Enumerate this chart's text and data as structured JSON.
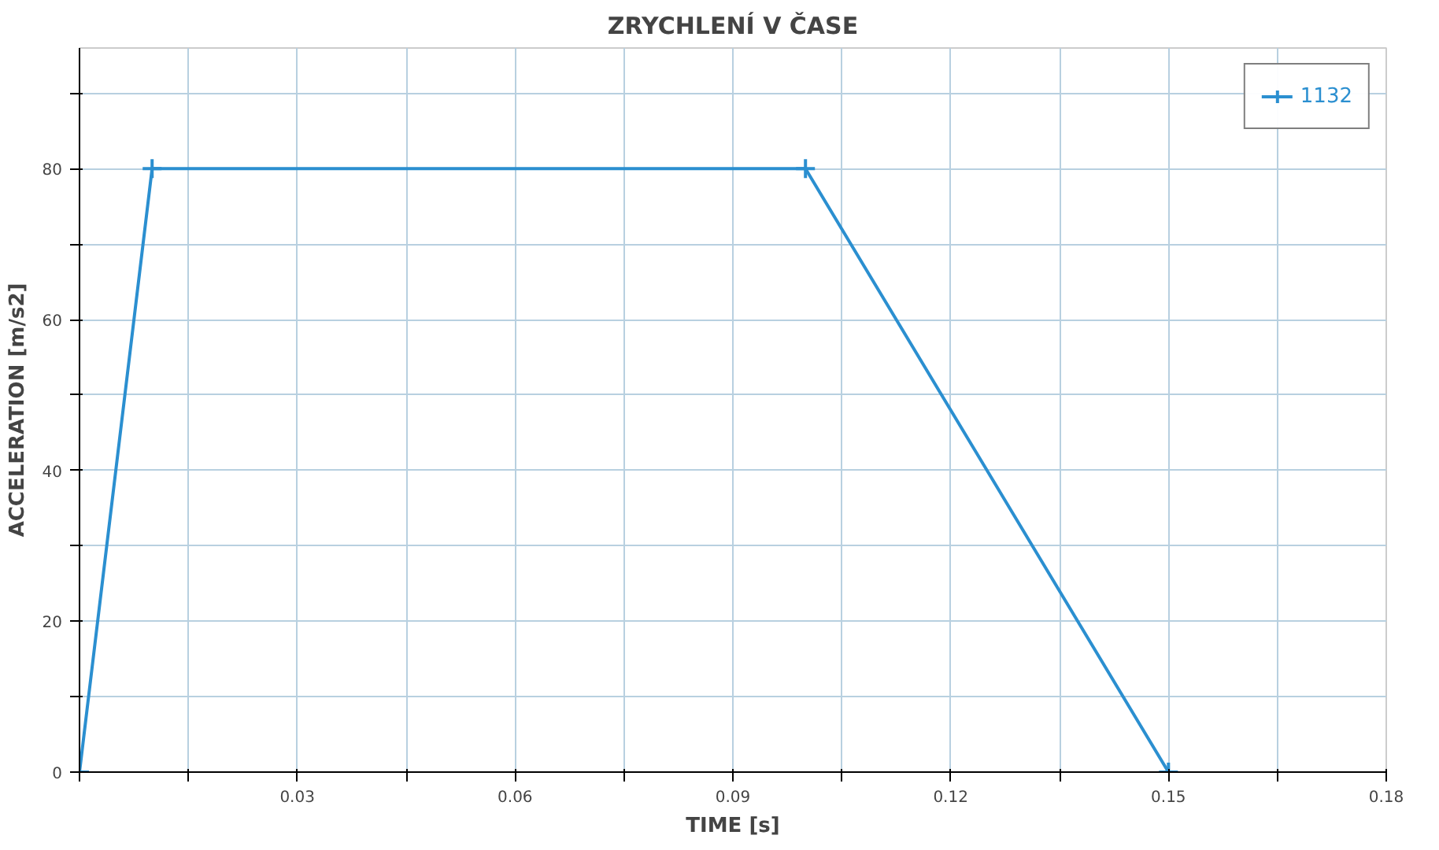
{
  "chart_data": {
    "type": "line",
    "title": "ZRYCHLENÍ V ČASE",
    "xlabel": "TIME [s]",
    "ylabel": "ACCELERATION [m/s2]",
    "x": [
      0,
      0.01,
      0.1,
      0.15
    ],
    "series": [
      {
        "name": "1132",
        "color": "#2b8fd0",
        "values": [
          0,
          80,
          80,
          0
        ]
      }
    ],
    "xlim": [
      0,
      0.18
    ],
    "ylim": [
      0,
      96
    ],
    "xticks": [
      {
        "value": 0,
        "label": null
      },
      {
        "value": 0.015,
        "label": null
      },
      0.03,
      {
        "value": 0.045,
        "label": null
      },
      0.06,
      {
        "value": 0.075,
        "label": null
      },
      0.09,
      {
        "value": 0.105,
        "label": null
      },
      0.12,
      {
        "value": 0.135,
        "label": null
      },
      0.15,
      {
        "value": 0.165,
        "label": null
      },
      0.18
    ],
    "yticks": [
      0,
      {
        "value": 10,
        "label": null
      },
      20,
      {
        "value": 30,
        "label": null
      },
      40,
      {
        "value": 50,
        "label": null
      },
      60,
      {
        "value": 70,
        "label": null
      },
      80,
      {
        "value": 90,
        "label": null
      }
    ],
    "grid": true,
    "legend": "top right",
    "marker": "cross",
    "line_style": "solid"
  }
}
